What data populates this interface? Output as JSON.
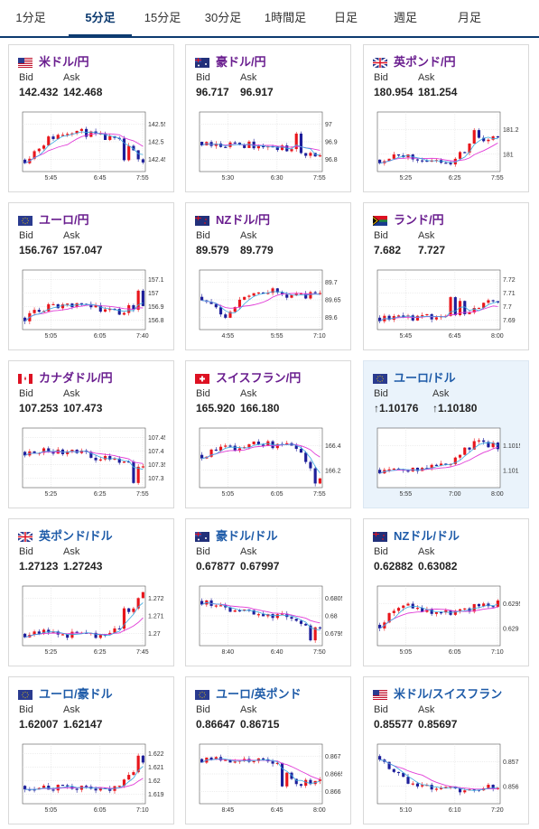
{
  "tabs": [
    "1分足",
    "5分足",
    "15分足",
    "30分足",
    "1時間足",
    "日足",
    "週足",
    "月足"
  ],
  "active_tab": 1,
  "labels": {
    "bid": "Bid",
    "ask": "Ask"
  },
  "colors": {
    "up": "#e8151b",
    "down": "#1d1e9a",
    "ma_long": "#e13cd7",
    "ma_short": "#38a9e0",
    "title_purple": "#6a1e8f",
    "title_blue": "#1e5ba8",
    "tab_active": "#0d3b70"
  },
  "cards": [
    {
      "title": "米ドル/円",
      "flag": "us-flag-icon",
      "bid": "142.432",
      "ask": "142.468",
      "highlight": false,
      "title_color": "purple",
      "chart_data": {
        "type": "candlestick",
        "x_labels": [
          "5:45",
          "6:45",
          "7:55"
        ],
        "y_ticks": [
          "142.55",
          "142.5",
          "142.45"
        ],
        "seed": 11,
        "trend": [
          0.2,
          0.55,
          0.7,
          0.6,
          0.5,
          0.2
        ],
        "spikes": [
          {
            "at": 0.85,
            "dir": -1
          }
        ]
      }
    },
    {
      "title": "豪ドル/円",
      "flag": "au-flag-icon",
      "bid": "96.717",
      "ask": "96.917",
      "highlight": false,
      "title_color": "purple",
      "chart_data": {
        "type": "candlestick",
        "x_labels": [
          "5:30",
          "6:30",
          "7:55"
        ],
        "y_ticks": [
          "97",
          "96.9",
          "96.8"
        ],
        "seed": 23,
        "trend": [
          0.5,
          0.45,
          0.45,
          0.4,
          0.35,
          0.25
        ],
        "spikes": [
          {
            "at": 0.8,
            "dir": 1
          }
        ]
      }
    },
    {
      "title": "英ポンド/円",
      "flag": "gb-flag-icon",
      "bid": "180.954",
      "ask": "181.254",
      "highlight": false,
      "title_color": "purple",
      "chart_data": {
        "type": "candlestick",
        "x_labels": [
          "5:25",
          "6:25",
          "7:55"
        ],
        "y_ticks": [
          "181.2",
          "181"
        ],
        "seed": 31,
        "trend": [
          0.2,
          0.25,
          0.2,
          0.15,
          0.5,
          0.6
        ],
        "spikes": [
          {
            "at": 0.82,
            "dir": 1
          }
        ]
      }
    },
    {
      "title": "ユーロ/円",
      "flag": "eu-flag-icon",
      "bid": "156.767",
      "ask": "157.047",
      "highlight": false,
      "title_color": "purple",
      "chart_data": {
        "type": "candlestick",
        "x_labels": [
          "5:05",
          "6:05",
          "7:40"
        ],
        "y_ticks": [
          "157.1",
          "157",
          "156.9",
          "156.8"
        ],
        "seed": 41,
        "trend": [
          0.2,
          0.4,
          0.4,
          0.35,
          0.3,
          0.45
        ],
        "spikes": [
          {
            "at": 0.97,
            "dir": 1
          }
        ]
      }
    },
    {
      "title": "NZドル/円",
      "flag": "nz-flag-icon",
      "bid": "89.579",
      "ask": "89.779",
      "highlight": false,
      "title_color": "purple",
      "chart_data": {
        "type": "candlestick",
        "x_labels": [
          "4:55",
          "5:55",
          "7:10"
        ],
        "y_ticks": [
          "89.7",
          "89.65",
          "89.6"
        ],
        "seed": 53,
        "trend": [
          0.55,
          0.25,
          0.6,
          0.65,
          0.55,
          0.6
        ],
        "spikes": []
      }
    },
    {
      "title": "ランド/円",
      "flag": "za-flag-icon",
      "bid": "7.682",
      "ask": "7.727",
      "highlight": false,
      "title_color": "purple",
      "chart_data": {
        "type": "candlestick",
        "x_labels": [
          "5:45",
          "6:45",
          "8:00"
        ],
        "y_ticks": [
          "7.72",
          "7.71",
          "7.7",
          "7.69"
        ],
        "seed": 67,
        "trend": [
          0.2,
          0.22,
          0.2,
          0.25,
          0.35,
          0.5
        ],
        "spikes": [
          {
            "at": 0.6,
            "dir": 1
          },
          {
            "at": 0.68,
            "dir": 1
          }
        ]
      }
    },
    {
      "title": "カナダドル/円",
      "flag": "ca-flag-icon",
      "bid": "107.253",
      "ask": "107.473",
      "highlight": false,
      "title_color": "purple",
      "chart_data": {
        "type": "candlestick",
        "x_labels": [
          "5:25",
          "6:25",
          "7:55"
        ],
        "y_ticks": [
          "107.45",
          "107.4",
          "107.35",
          "107.3"
        ],
        "seed": 71,
        "trend": [
          0.6,
          0.6,
          0.62,
          0.5,
          0.45,
          0.3
        ],
        "spikes": [
          {
            "at": 0.93,
            "dir": -1
          }
        ]
      }
    },
    {
      "title": "スイスフラン/円",
      "flag": "ch-flag-icon",
      "bid": "165.920",
      "ask": "166.180",
      "highlight": false,
      "title_color": "purple",
      "chart_data": {
        "type": "candlestick",
        "x_labels": [
          "5:05",
          "6:05",
          "7:55"
        ],
        "y_ticks": [
          "166.4",
          "166.2"
        ],
        "seed": 83,
        "trend": [
          0.55,
          0.65,
          0.72,
          0.72,
          0.7,
          0.15
        ],
        "spikes": [
          {
            "at": 0.95,
            "dir": -1
          }
        ]
      }
    },
    {
      "title": "ユーロ/ドル",
      "flag": "eu-flag-icon",
      "bid": "↑1.10176",
      "ask": "↑1.10180",
      "highlight": true,
      "title_color": "blue",
      "chart_data": {
        "type": "candlestick",
        "x_labels": [
          "5:55",
          "7:00",
          "8:00"
        ],
        "y_ticks": [
          "1.1015",
          "1.101"
        ],
        "seed": 97,
        "trend": [
          0.3,
          0.3,
          0.35,
          0.45,
          0.75,
          0.7
        ],
        "spikes": []
      }
    },
    {
      "title": "英ポンド/ドル",
      "flag": "gb-flag-icon",
      "bid": "1.27123",
      "ask": "1.27243",
      "highlight": false,
      "title_color": "blue",
      "chart_data": {
        "type": "candlestick",
        "x_labels": [
          "5:25",
          "6:25",
          "7:45"
        ],
        "y_ticks": [
          "1.272",
          "1.271",
          "1.27"
        ],
        "seed": 101,
        "trend": [
          0.2,
          0.22,
          0.18,
          0.15,
          0.3,
          0.85
        ],
        "spikes": [
          {
            "at": 0.85,
            "dir": 1
          }
        ]
      }
    },
    {
      "title": "豪ドル/ドル",
      "flag": "au-flag-icon",
      "bid": "0.67877",
      "ask": "0.67997",
      "highlight": false,
      "title_color": "blue",
      "chart_data": {
        "type": "candlestick",
        "x_labels": [
          "8:40",
          "6:40",
          "7:50"
        ],
        "y_ticks": [
          "0.6805",
          "0.68",
          "0.6795"
        ],
        "seed": 113,
        "trend": [
          0.75,
          0.6,
          0.55,
          0.5,
          0.45,
          0.3
        ],
        "spikes": [
          {
            "at": 0.92,
            "dir": -1
          }
        ]
      }
    },
    {
      "title": "NZドル/ドル",
      "flag": "nz-flag-icon",
      "bid": "0.62882",
      "ask": "0.63082",
      "highlight": false,
      "title_color": "blue",
      "chart_data": {
        "type": "candlestick",
        "x_labels": [
          "5:05",
          "6:05",
          "7:10"
        ],
        "y_ticks": [
          "0.6295",
          "0.629"
        ],
        "seed": 127,
        "trend": [
          0.35,
          0.7,
          0.6,
          0.55,
          0.65,
          0.7
        ],
        "spikes": []
      }
    },
    {
      "title": "ユーロ/豪ドル",
      "flag": "eu-flag-icon",
      "bid": "1.62007",
      "ask": "1.62147",
      "highlight": false,
      "title_color": "blue",
      "chart_data": {
        "type": "candlestick",
        "x_labels": [
          "5:05",
          "6:05",
          "7:10"
        ],
        "y_ticks": [
          "1.622",
          "1.621",
          "1.62",
          "1.619"
        ],
        "seed": 131,
        "trend": [
          0.3,
          0.25,
          0.28,
          0.22,
          0.3,
          0.65
        ],
        "spikes": [
          {
            "at": 0.95,
            "dir": 1
          }
        ]
      }
    },
    {
      "title": "ユーロ/英ポンド",
      "flag": "eu-flag-icon",
      "bid": "0.86647",
      "ask": "0.86715",
      "highlight": false,
      "title_color": "blue",
      "chart_data": {
        "type": "candlestick",
        "x_labels": [
          "8:45",
          "6:45",
          "8:00"
        ],
        "y_ticks": [
          "0.867",
          "0.8665",
          "0.866"
        ],
        "seed": 139,
        "trend": [
          0.75,
          0.72,
          0.7,
          0.72,
          0.3,
          0.4
        ],
        "spikes": [
          {
            "at": 0.68,
            "dir": -1
          }
        ]
      }
    },
    {
      "title": "米ドル/スイスフラン",
      "flag": "us-flag-icon",
      "bid": "0.85577",
      "ask": "0.85697",
      "highlight": false,
      "title_color": "blue",
      "chart_data": {
        "type": "candlestick",
        "x_labels": [
          "5:10",
          "6:10",
          "7:20"
        ],
        "y_ticks": [
          "0.857",
          "0.856"
        ],
        "seed": 149,
        "trend": [
          0.8,
          0.4,
          0.3,
          0.25,
          0.2,
          0.3
        ],
        "spikes": []
      }
    }
  ]
}
